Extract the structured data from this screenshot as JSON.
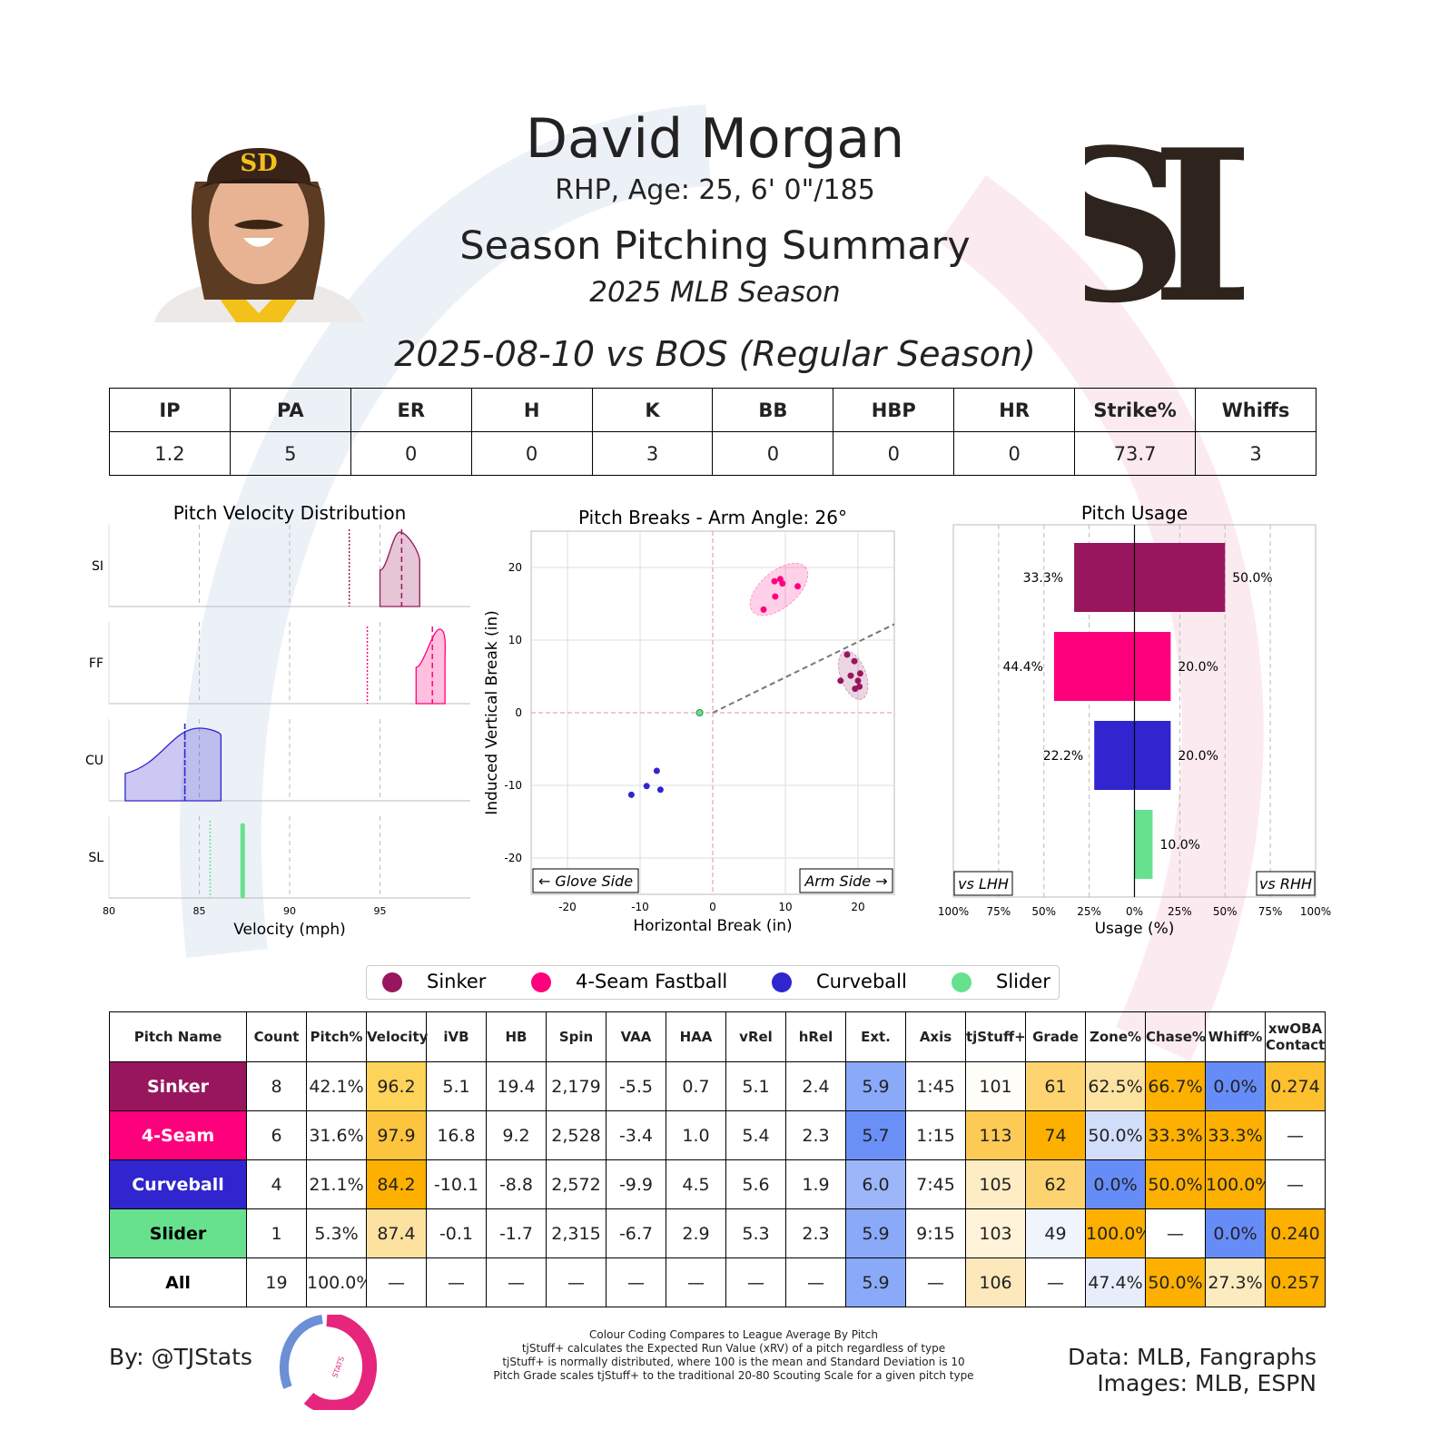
{
  "player": {
    "name": "David Morgan",
    "bio": "RHP, Age: 25, 6' 0\"/185",
    "summary_title": "Season Pitching Summary",
    "season": "2025 MLB Season",
    "game": "2025-08-10 vs BOS (Regular Season)",
    "team_logo_text": "SD"
  },
  "linescore": {
    "headers": [
      "IP",
      "PA",
      "ER",
      "H",
      "K",
      "BB",
      "HBP",
      "HR",
      "Strike%",
      "Whiffs"
    ],
    "values": [
      "1.2",
      "5",
      "0",
      "0",
      "3",
      "0",
      "0",
      "0",
      "73.7",
      "3"
    ]
  },
  "colors": {
    "sinker": "#98165d",
    "fourseam": "#ff007d",
    "curveball": "#3025ce",
    "slider": "#67e18d"
  },
  "chart_data": [
    {
      "type": "area",
      "title": "Pitch Velocity Distribution",
      "xlabel": "Velocity (mph)",
      "xlim": [
        80,
        100
      ],
      "xticks": [
        "80",
        "85",
        "90",
        "95"
      ],
      "rows": [
        {
          "label": "SI",
          "key": "sinker",
          "min": 95.0,
          "max": 97.2,
          "peak": 96.1,
          "mean": 96.2,
          "league_avg": 93.3
        },
        {
          "label": "FF",
          "key": "fourseam",
          "min": 97.0,
          "max": 98.6,
          "peak": 98.3,
          "mean": 97.9,
          "league_avg": 94.3
        },
        {
          "label": "CU",
          "key": "curveball",
          "min": 80.9,
          "max": 86.2,
          "peak": 85.0,
          "mean": 84.2,
          "league_avg": 84.2
        },
        {
          "label": "SL",
          "key": "slider",
          "min": 87.4,
          "max": 87.4,
          "peak": 87.4,
          "mean": 87.4,
          "league_avg": 85.6
        }
      ]
    },
    {
      "type": "scatter",
      "title": "Pitch Breaks - Arm Angle: 26°",
      "xlabel": "Horizontal Break (in)",
      "ylabel": "Induced Vertical Break (in)",
      "xlim": [
        -25,
        25
      ],
      "ylim": [
        -25,
        25
      ],
      "xticks": [
        "-20",
        "-10",
        "0",
        "10",
        "20"
      ],
      "yticks": [
        "20",
        "10",
        "0",
        "-10",
        "-20"
      ],
      "arm_angle_deg": 26,
      "glove_side_label": "← Glove Side",
      "arm_side_label": "Arm Side →",
      "series": [
        {
          "name": "Sinker",
          "key": "sinker",
          "points": [
            [
              18.5,
              8.0
            ],
            [
              19.5,
              7.1
            ],
            [
              20.3,
              5.4
            ],
            [
              19.0,
              5.1
            ],
            [
              17.6,
              4.4
            ],
            [
              20.0,
              4.4
            ],
            [
              19.6,
              3.3
            ],
            [
              20.2,
              3.6
            ]
          ]
        },
        {
          "name": "4-Seam Fastball",
          "key": "fourseam",
          "points": [
            [
              8.5,
              18.1
            ],
            [
              9.3,
              18.4
            ],
            [
              9.6,
              17.8
            ],
            [
              11.7,
              17.4
            ],
            [
              8.6,
              16.0
            ],
            [
              7.0,
              14.2
            ]
          ]
        },
        {
          "name": "Curveball",
          "key": "curveball",
          "points": [
            [
              -7.7,
              -8.0
            ],
            [
              -9.1,
              -10.1
            ],
            [
              -7.2,
              -10.6
            ],
            [
              -11.2,
              -11.3
            ]
          ]
        },
        {
          "name": "Slider",
          "key": "slider",
          "points": [
            [
              -1.8,
              0.0
            ]
          ]
        }
      ]
    },
    {
      "type": "bar",
      "title": "Pitch Usage",
      "xlabel": "Usage (%)",
      "xlim": [
        -100,
        100
      ],
      "xticks": [
        "100%",
        "75%",
        "50%",
        "25%",
        "0%",
        "25%",
        "50%",
        "75%",
        "100%"
      ],
      "vs_lhh_label": "vs LHH",
      "vs_rhh_label": "vs RHH",
      "series": [
        {
          "name": "Sinker",
          "key": "sinker",
          "lhh": 33.3,
          "rhh": 50.0,
          "lhh_label": "33.3%",
          "rhh_label": "50.0%"
        },
        {
          "name": "4-Seam Fastball",
          "key": "fourseam",
          "lhh": 44.4,
          "rhh": 20.0,
          "lhh_label": "44.4%",
          "rhh_label": "20.0%"
        },
        {
          "name": "Curveball",
          "key": "curveball",
          "lhh": 22.2,
          "rhh": 20.0,
          "lhh_label": "22.2%",
          "rhh_label": "20.0%"
        },
        {
          "name": "Slider",
          "key": "slider",
          "lhh": 0,
          "rhh": 10.0,
          "lhh_label": "",
          "rhh_label": "10.0%"
        }
      ]
    }
  ],
  "legend": [
    {
      "label": "Sinker",
      "key": "sinker"
    },
    {
      "label": "4-Seam Fastball",
      "key": "fourseam"
    },
    {
      "label": "Curveball",
      "key": "curveball"
    },
    {
      "label": "Slider",
      "key": "slider"
    }
  ],
  "pitch_table": {
    "headers": [
      "Pitch Name",
      "Count",
      "Pitch%",
      "Velocity",
      "iVB",
      "HB",
      "Spin",
      "VAA",
      "HAA",
      "vRel",
      "hRel",
      "Ext.",
      "Axis",
      "tjStuff+",
      "Grade",
      "Zone%",
      "Chase%",
      "Whiff%",
      "xwOBA\nContact"
    ],
    "rows": [
      {
        "name": "Sinker",
        "key": "sinker",
        "text_color": "#ffffff",
        "cells": [
          "8",
          "42.1%",
          "96.2",
          "5.1",
          "19.4",
          "2,179",
          "-5.5",
          "0.7",
          "5.1",
          "2.4",
          "5.9",
          "1:45",
          "101",
          "61",
          "62.5%",
          "66.7%",
          "0.0%",
          "0.274"
        ],
        "bg": [
          "",
          "",
          "#fdd35a",
          "",
          "",
          "",
          "",
          "",
          "",
          "",
          "#8aa9f8",
          "",
          "#fffdf8",
          "#fdd470",
          "#fde3a0",
          "#fdb000",
          "#668cf7",
          "#fdc02e"
        ]
      },
      {
        "name": "4-Seam",
        "key": "fourseam",
        "text_color": "#ffffff",
        "cells": [
          "6",
          "31.6%",
          "97.9",
          "16.8",
          "9.2",
          "2,528",
          "-3.4",
          "1.0",
          "5.4",
          "2.3",
          "5.7",
          "1:15",
          "113",
          "74",
          "50.0%",
          "33.3%",
          "33.3%",
          "—"
        ],
        "bg": [
          "",
          "",
          "#fdc43e",
          "",
          "",
          "",
          "",
          "",
          "",
          "",
          "#6a8ff7",
          "",
          "#fdcb55",
          "#fdb000",
          "#d2ddfa",
          "#fdb000",
          "#fdb000",
          ""
        ]
      },
      {
        "name": "Curveball",
        "key": "curveball",
        "text_color": "#ffffff",
        "cells": [
          "4",
          "21.1%",
          "84.2",
          "-10.1",
          "-8.8",
          "2,572",
          "-9.9",
          "4.5",
          "5.6",
          "1.9",
          "6.0",
          "7:45",
          "105",
          "62",
          "0.0%",
          "50.0%",
          "100.0%",
          "—"
        ],
        "bg": [
          "",
          "",
          "#fdb000",
          "",
          "",
          "",
          "",
          "",
          "",
          "",
          "#9cb6f9",
          "",
          "#fdecc4",
          "#fdd270",
          "#668cf7",
          "#fdb000",
          "#fdb000",
          ""
        ]
      },
      {
        "name": "Slider",
        "key": "slider",
        "text_color": "#000000",
        "cells": [
          "1",
          "5.3%",
          "87.4",
          "-0.1",
          "-1.7",
          "2,315",
          "-6.7",
          "2.9",
          "5.3",
          "2.3",
          "5.9",
          "9:15",
          "103",
          "49",
          "100.0%",
          "—",
          "0.0%",
          "0.240"
        ],
        "bg": [
          "",
          "",
          "#fde1a0",
          "",
          "",
          "",
          "",
          "",
          "",
          "",
          "#8aa9f8",
          "",
          "#fff3d9",
          "#f0f4fc",
          "#fdb000",
          "",
          "#668cf7",
          "#fdb000"
        ]
      },
      {
        "name": "All",
        "key": "",
        "text_color": "#000000",
        "cells": [
          "19",
          "100.0%",
          "—",
          "—",
          "—",
          "—",
          "—",
          "—",
          "—",
          "—",
          "5.9",
          "—",
          "106",
          "—",
          "47.4%",
          "50.0%",
          "27.3%",
          "0.257"
        ],
        "bg": [
          "",
          "",
          "",
          "",
          "",
          "",
          "",
          "",
          "",
          "",
          "#8aa9f8",
          "",
          "#fde8bc",
          "",
          "#e8edfb",
          "#fdb000",
          "#fdebc0",
          "#fdb000"
        ]
      }
    ]
  },
  "footer": {
    "by": "By: @TJStats",
    "logo_text": "STATS",
    "notes": [
      "Colour Coding Compares to League Average By Pitch",
      "tjStuff+ calculates the Expected Run Value (xRV) of a pitch regardless of type",
      "tjStuff+ is normally distributed, where 100 is the mean and Standard Deviation is 10",
      "Pitch Grade scales tjStuff+ to the traditional 20-80 Scouting Scale for a given pitch type"
    ],
    "data_credit": "Data: MLB, Fangraphs",
    "image_credit": "Images: MLB, ESPN"
  }
}
